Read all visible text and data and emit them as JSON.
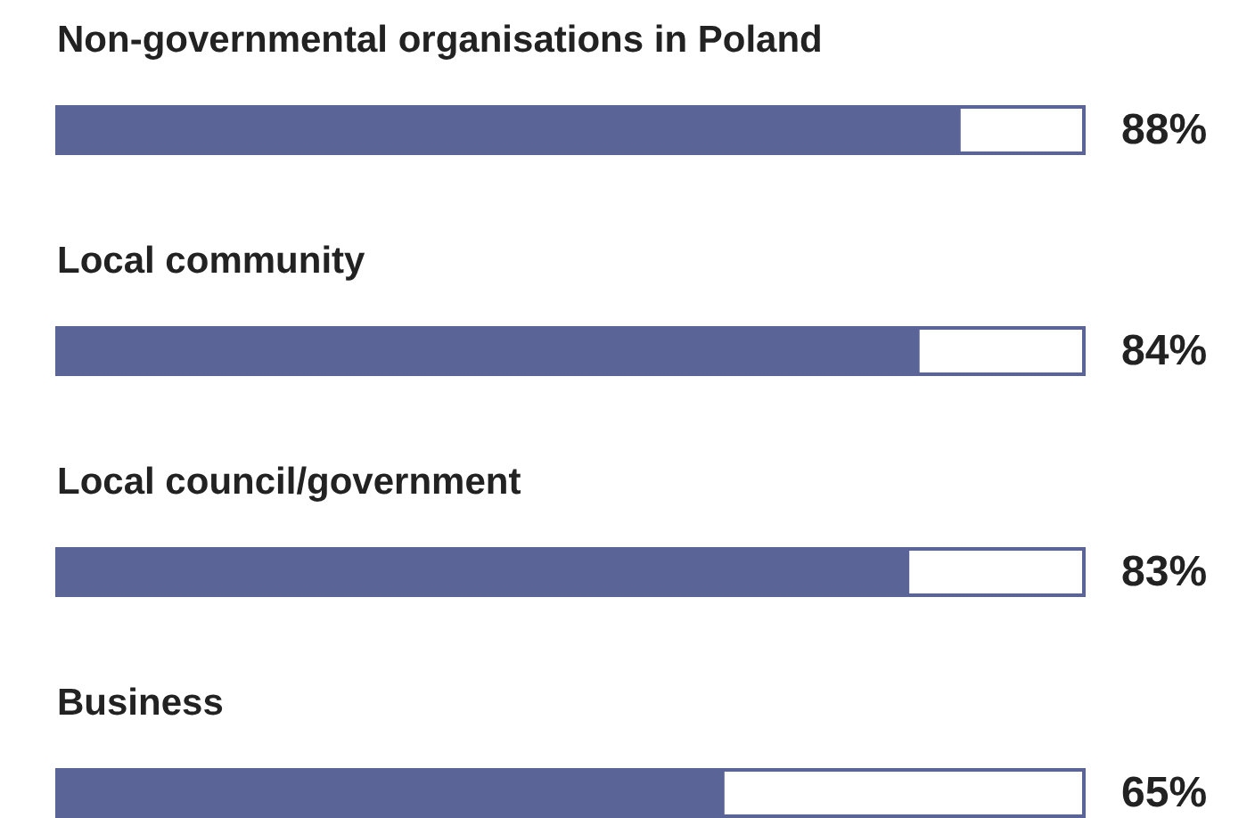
{
  "chart_data": {
    "type": "bar",
    "orientation": "horizontal",
    "categories": [
      "Non-governmental organisations in Poland",
      "Local community",
      "Local council/government",
      "Business"
    ],
    "values": [
      88,
      84,
      83,
      65
    ],
    "value_labels": [
      "88%",
      "84%",
      "83%",
      "65%"
    ],
    "color": "#5a6496",
    "xlim": [
      0,
      100
    ],
    "tick_labels": false
  }
}
